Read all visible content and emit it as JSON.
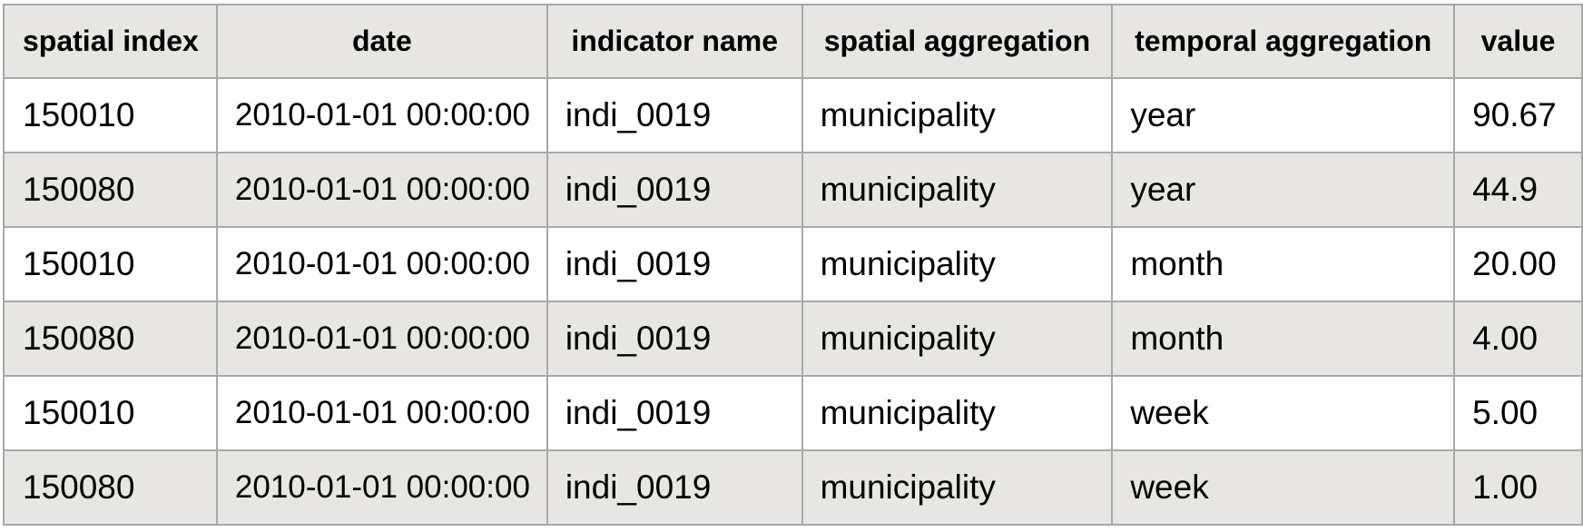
{
  "table": {
    "headers": [
      "spatial index",
      "date",
      "indicator name",
      "spatial aggregation",
      "temporal aggregation",
      "value"
    ],
    "rows": [
      [
        "150010",
        "2010-01-01 00:00:00",
        "indi_0019",
        "municipality",
        "year",
        "90.67"
      ],
      [
        "150080",
        "2010-01-01 00:00:00",
        "indi_0019",
        "municipality",
        "year",
        "44.9"
      ],
      [
        "150010",
        "2010-01-01 00:00:00",
        "indi_0019",
        "municipality",
        "month",
        "20.00"
      ],
      [
        "150080",
        "2010-01-01 00:00:00",
        "indi_0019",
        "municipality",
        "month",
        "4.00"
      ],
      [
        "150010",
        "2010-01-01 00:00:00",
        "indi_0019",
        "municipality",
        "week",
        "5.00"
      ],
      [
        "150080",
        "2010-01-01 00:00:00",
        "indi_0019",
        "municipality",
        "week",
        "1.00"
      ]
    ]
  },
  "colors": {
    "header_background": "#e8e6e3",
    "shaded_row_background": "#e8e6e3",
    "plain_row_background": "#ffffff",
    "border": "#a9a9a9"
  }
}
